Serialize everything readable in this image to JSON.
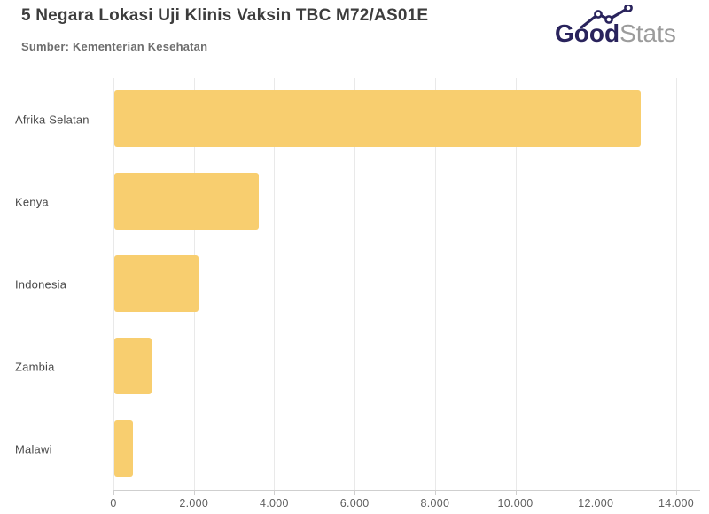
{
  "header": {
    "logo": {
      "text_bold": "Good",
      "text_light": "Stats",
      "brand_navy": "#29235C",
      "brand_gray": "#9c9c9c",
      "icon": "line-chart-icon"
    }
  },
  "chart_data": {
    "type": "bar",
    "orientation": "horizontal",
    "title": "5 Negara Lokasi Uji Klinis Vaksin TBC M72/AS01E",
    "subtitle": "Sumber: Kementerian Kesehatan",
    "categories": [
      "Afrika Selatan",
      "Kenya",
      "Indonesia",
      "Zambia",
      "Malawi"
    ],
    "values": [
      13100,
      3600,
      2100,
      925,
      460
    ],
    "xlim": [
      0,
      14000
    ],
    "x_ticks": [
      0,
      2000,
      4000,
      6000,
      8000,
      10000,
      12000,
      14000
    ],
    "x_tick_labels": [
      "0",
      "2.000",
      "4.000",
      "6.000",
      "8.000",
      "10.000",
      "12.000",
      "14.000"
    ],
    "xlabel": "",
    "ylabel": "",
    "bar_color": "#F8CE6F",
    "grid": "vertical-only",
    "legend": "none",
    "data_labels": "none"
  }
}
